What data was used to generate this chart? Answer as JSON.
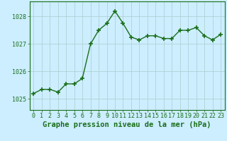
{
  "x": [
    0,
    1,
    2,
    3,
    4,
    5,
    6,
    7,
    8,
    9,
    10,
    11,
    12,
    13,
    14,
    15,
    16,
    17,
    18,
    19,
    20,
    21,
    22,
    23
  ],
  "y": [
    1025.2,
    1025.35,
    1025.35,
    1025.25,
    1025.55,
    1025.55,
    1025.75,
    1027.0,
    1027.5,
    1027.75,
    1028.2,
    1027.75,
    1027.25,
    1027.15,
    1027.3,
    1027.3,
    1027.2,
    1027.2,
    1027.5,
    1027.5,
    1027.6,
    1027.3,
    1027.15,
    1027.35
  ],
  "line_color": "#1a6e1a",
  "marker": "+",
  "marker_size": 5,
  "marker_linewidth": 1.2,
  "bg_color": "#cceeff",
  "grid_color": "#aacccc",
  "xlabel": "Graphe pression niveau de la mer (hPa)",
  "xlabel_color": "#1a6e1a",
  "xlabel_fontsize": 7.5,
  "yticks": [
    1025,
    1026,
    1027,
    1028
  ],
  "ylim": [
    1024.6,
    1028.55
  ],
  "xlim": [
    -0.5,
    23.5
  ],
  "xticks": [
    0,
    1,
    2,
    3,
    4,
    5,
    6,
    7,
    8,
    9,
    10,
    11,
    12,
    13,
    14,
    15,
    16,
    17,
    18,
    19,
    20,
    21,
    22,
    23
  ],
  "tick_fontsize": 6,
  "tick_color": "#1a6e1a",
  "spine_color": "#1a6e1a",
  "linewidth": 1.0
}
